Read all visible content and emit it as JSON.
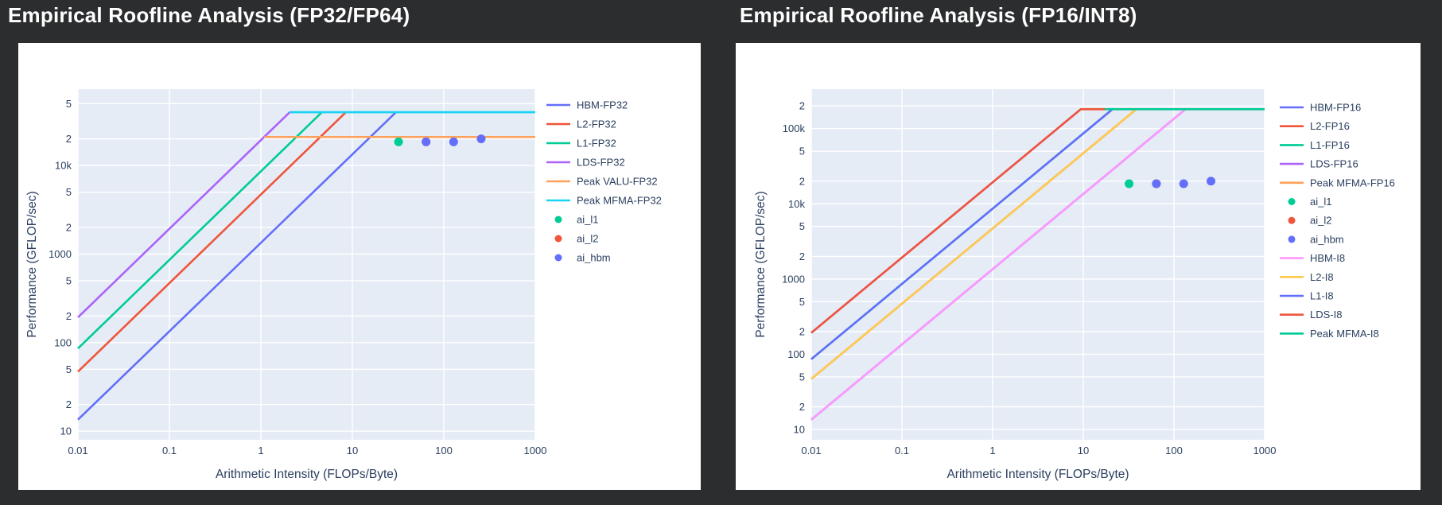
{
  "page": {
    "background": "#2c2d2f",
    "card_background": "#ffffff",
    "plot_background": "#E5ECF6",
    "grid_color": "#ffffff",
    "text_color": "#2a3f5f",
    "title_color": "#ffffff"
  },
  "chart_data": [
    {
      "type": "line",
      "title": "Empirical Roofline Analysis (FP32/FP64)",
      "xlabel": "Arithmetic Intensity (FLOPs/Byte)",
      "ylabel": "Performance (GFLOP/sec)",
      "legend_position": "right",
      "grid": true,
      "x_axis": {
        "scale": "log",
        "range": [
          0.01,
          1000
        ],
        "tick_values": [
          0.01,
          0.1,
          1,
          10,
          100,
          1000
        ],
        "tick_labels": [
          "0.01",
          "0.1",
          "1",
          "10",
          "100",
          "1000"
        ]
      },
      "y_axis": {
        "scale": "log",
        "range": [
          8,
          73000
        ],
        "tick_values": [
          10,
          20,
          50,
          100,
          200,
          500,
          1000,
          2000,
          5000,
          10000,
          20000,
          50000
        ],
        "tick_labels": [
          "10",
          "2",
          "5",
          "100",
          "2",
          "5",
          "1000",
          "2",
          "5",
          "10k",
          "2",
          "5"
        ]
      },
      "series": [
        {
          "name": "HBM-FP32",
          "kind": "line",
          "color": "#636EFA",
          "points": [
            [
              0.01,
              13.5
            ],
            [
              30,
              40000
            ]
          ]
        },
        {
          "name": "L2-FP32",
          "kind": "line",
          "color": "#EF553B",
          "points": [
            [
              0.01,
              47
            ],
            [
              8.5,
              40000
            ]
          ]
        },
        {
          "name": "L1-FP32",
          "kind": "line",
          "color": "#00CC96",
          "points": [
            [
              0.01,
              86
            ],
            [
              4.65,
              40000
            ]
          ]
        },
        {
          "name": "LDS-FP32",
          "kind": "line",
          "color": "#AB63FA",
          "points": [
            [
              0.01,
              193
            ],
            [
              2.07,
              40000
            ]
          ]
        },
        {
          "name": "Peak VALU-FP32",
          "kind": "line",
          "color": "#FFA15A",
          "points": [
            [
              1.09,
              21000
            ],
            [
              1000,
              21000
            ]
          ]
        },
        {
          "name": "Peak MFMA-FP32",
          "kind": "line",
          "color": "#19D3F3",
          "points": [
            [
              2.07,
              40000
            ],
            [
              1000,
              40000
            ]
          ]
        },
        {
          "name": "ai_l1",
          "kind": "marker",
          "color": "#00CC96",
          "points": [
            [
              32,
              18500
            ]
          ]
        },
        {
          "name": "ai_l2",
          "kind": "marker",
          "color": "#EF553B",
          "points": [
            [
              64,
              18500
            ]
          ]
        },
        {
          "name": "ai_hbm",
          "kind": "marker",
          "color": "#636EFA",
          "points": [
            [
              64,
              18500
            ],
            [
              128,
              18500
            ],
            [
              256,
              20000
            ]
          ]
        }
      ]
    },
    {
      "type": "line",
      "title": "Empirical Roofline Analysis (FP16/INT8)",
      "xlabel": "Arithmetic Intensity (FLOPs/Byte)",
      "ylabel": "Performance (GFLOP/sec)",
      "legend_position": "right",
      "grid": true,
      "x_axis": {
        "scale": "log",
        "range": [
          0.01,
          1000
        ],
        "tick_values": [
          0.01,
          0.1,
          1,
          10,
          100,
          1000
        ],
        "tick_labels": [
          "0.01",
          "0.1",
          "1",
          "10",
          "100",
          "1000"
        ]
      },
      "y_axis": {
        "scale": "log",
        "range": [
          7.3,
          335000
        ],
        "tick_values": [
          10,
          20,
          50,
          100,
          200,
          500,
          1000,
          2000,
          5000,
          10000,
          20000,
          50000,
          100000,
          200000
        ],
        "tick_labels": [
          "10",
          "2",
          "5",
          "100",
          "2",
          "5",
          "1000",
          "2",
          "5",
          "10k",
          "2",
          "5",
          "100k",
          "2"
        ]
      },
      "series": [
        {
          "name": "HBM-FP16",
          "kind": "line",
          "color": "#636EFA",
          "points": [
            [
              0.01,
              13.5
            ],
            [
              134,
              181000
            ]
          ]
        },
        {
          "name": "L2-FP16",
          "kind": "line",
          "color": "#EF553B",
          "points": [
            [
              0.01,
              47
            ],
            [
              38.5,
              181000
            ]
          ]
        },
        {
          "name": "L1-FP16",
          "kind": "line",
          "color": "#00CC96",
          "points": [
            [
              0.01,
              86
            ],
            [
              21,
              181000
            ]
          ]
        },
        {
          "name": "LDS-FP16",
          "kind": "line",
          "color": "#AB63FA",
          "points": [
            [
              0.01,
              193
            ],
            [
              9.4,
              181000
            ]
          ]
        },
        {
          "name": "Peak MFMA-FP16",
          "kind": "line",
          "color": "#FFA15A",
          "points": [
            [
              9.4,
              181000
            ],
            [
              1000,
              181000
            ]
          ]
        },
        {
          "name": "ai_l1",
          "kind": "marker",
          "color": "#00CC96",
          "points": [
            [
              32,
              18500
            ]
          ]
        },
        {
          "name": "ai_l2",
          "kind": "marker",
          "color": "#EF553B",
          "points": [
            [
              64,
              18500
            ]
          ]
        },
        {
          "name": "ai_hbm",
          "kind": "marker",
          "color": "#636EFA",
          "points": [
            [
              64,
              18500
            ],
            [
              128,
              18500
            ],
            [
              256,
              20000
            ]
          ]
        },
        {
          "name": "HBM-I8",
          "kind": "line",
          "color": "#FF97FF",
          "points": [
            [
              0.01,
              13.5
            ],
            [
              134,
              181000
            ]
          ]
        },
        {
          "name": "L2-I8",
          "kind": "line",
          "color": "#FECB52",
          "points": [
            [
              0.01,
              47
            ],
            [
              38.5,
              181000
            ]
          ]
        },
        {
          "name": "L1-I8",
          "kind": "line",
          "color": "#636EFA",
          "points": [
            [
              0.01,
              86
            ],
            [
              21,
              181000
            ]
          ]
        },
        {
          "name": "LDS-I8",
          "kind": "line",
          "color": "#EF553B",
          "points": [
            [
              0.01,
              193
            ],
            [
              9.4,
              181000
            ],
            [
              17.3,
              181000
            ]
          ]
        },
        {
          "name": "Peak MFMA-I8",
          "kind": "line",
          "color": "#00CC96",
          "points": [
            [
              17.3,
              181000
            ],
            [
              1000,
              181000
            ]
          ]
        }
      ]
    }
  ]
}
